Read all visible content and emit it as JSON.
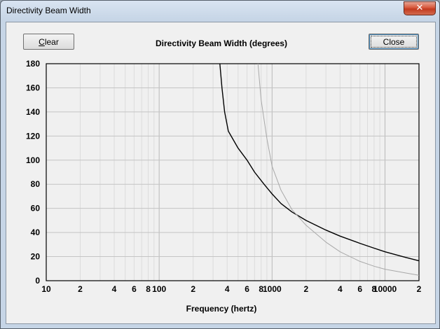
{
  "window": {
    "title": "Directivity Beam Width",
    "close_glyph": "✕"
  },
  "buttons": {
    "clear_label": "Clear",
    "clear_mnemonic": "C",
    "clear_rest": "lear",
    "close_label": "Close"
  },
  "chart_data": {
    "type": "line",
    "title": "Directivity Beam Width (degrees)",
    "xlabel": "Frequency (hertz)",
    "ylabel": "",
    "x_scale": "log",
    "xlim": [
      10,
      20000
    ],
    "ylim": [
      0,
      180
    ],
    "grid": true,
    "y_ticks": [
      0,
      20,
      40,
      60,
      80,
      100,
      120,
      140,
      160,
      180
    ],
    "x_tick_labels": [
      {
        "x": 10,
        "label": "10"
      },
      {
        "x": 20,
        "label": "2"
      },
      {
        "x": 40,
        "label": "4"
      },
      {
        "x": 60,
        "label": "6"
      },
      {
        "x": 80,
        "label": "8"
      },
      {
        "x": 100,
        "label": "100"
      },
      {
        "x": 200,
        "label": "2"
      },
      {
        "x": 400,
        "label": "4"
      },
      {
        "x": 600,
        "label": "6"
      },
      {
        "x": 800,
        "label": "8"
      },
      {
        "x": 1000,
        "label": "1000"
      },
      {
        "x": 2000,
        "label": "2"
      },
      {
        "x": 4000,
        "label": "4"
      },
      {
        "x": 6000,
        "label": "6"
      },
      {
        "x": 8000,
        "label": "8"
      },
      {
        "x": 10000,
        "label": "10000"
      },
      {
        "x": 20000,
        "label": "2"
      }
    ],
    "series": [
      {
        "color": "#000000",
        "points": [
          [
            345,
            180
          ],
          [
            360,
            160
          ],
          [
            380,
            140
          ],
          [
            410,
            124
          ],
          [
            500,
            110
          ],
          [
            600,
            100
          ],
          [
            700,
            90
          ],
          [
            850,
            80
          ],
          [
            1000,
            72
          ],
          [
            1200,
            64
          ],
          [
            1500,
            57
          ],
          [
            2000,
            50
          ],
          [
            3000,
            42
          ],
          [
            4000,
            37
          ],
          [
            6000,
            31
          ],
          [
            8000,
            27
          ],
          [
            10000,
            24
          ],
          [
            15000,
            19.5
          ],
          [
            20000,
            16.5
          ]
        ]
      },
      {
        "color": "#a8a8a8",
        "points": [
          [
            750,
            180
          ],
          [
            800,
            150
          ],
          [
            900,
            118
          ],
          [
            1000,
            95
          ],
          [
            1200,
            75
          ],
          [
            1500,
            59
          ],
          [
            2000,
            46
          ],
          [
            3000,
            32
          ],
          [
            4000,
            24
          ],
          [
            6000,
            16
          ],
          [
            8000,
            12
          ],
          [
            10000,
            9.5
          ],
          [
            15000,
            6.5
          ],
          [
            20000,
            4.5
          ]
        ]
      }
    ]
  }
}
